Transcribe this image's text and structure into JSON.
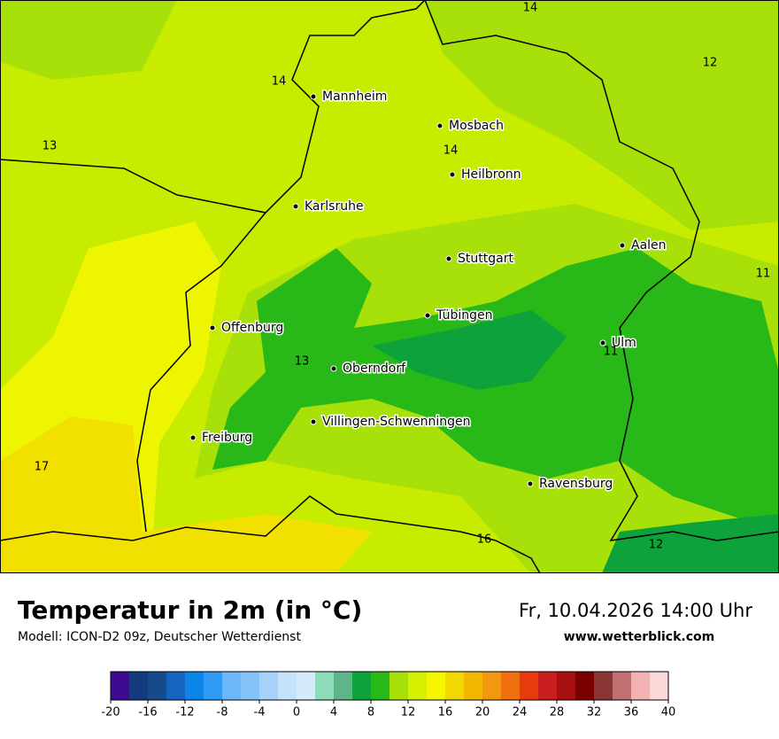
{
  "title": "Temperatur in 2m (in °C)",
  "subtitle": "Modell: ICON-D2 09z, Deutscher Wetterdienst",
  "datetime": "Fr, 10.04.2026 14:00 Uhr",
  "website": "www.wetterblick.com",
  "cities": [
    "Mannheim",
    "Mosbach",
    "Heilbronn",
    "Karlsruhe",
    "Aalen",
    "Stuttgart",
    "Tübingen",
    "Offenburg",
    "Ulm",
    "Oberndorf",
    "Villingen-Schwenningen",
    "Freiburg",
    "Ravensburg"
  ],
  "map_values": [
    14,
    12,
    14,
    13,
    14,
    11,
    11,
    13,
    17,
    16,
    12
  ],
  "colorbar": {
    "lim": [
      -20,
      40
    ],
    "ticks": [
      -20,
      -16,
      -12,
      -8,
      -4,
      0,
      4,
      8,
      12,
      16,
      20,
      24,
      28,
      32,
      36,
      40
    ],
    "colors": [
      "#3d0a91",
      "#123a7d",
      "#174a8b",
      "#1565c0",
      "#0a84e8",
      "#2f9bf5",
      "#6db6f7",
      "#85c2f7",
      "#a6d2fa",
      "#c5e2fb",
      "#d7eafc",
      "#8fdcbb",
      "#5fb58a",
      "#0ea33a",
      "#28b818",
      "#a8e00a",
      "#d4f000",
      "#f5f500",
      "#f2d800",
      "#f2b800",
      "#f29810",
      "#f07010",
      "#e83a0e",
      "#c81e1e",
      "#a81010",
      "#7a0000",
      "#8b3535",
      "#c07070",
      "#f2b2b2",
      "#fcd9d9"
    ]
  }
}
